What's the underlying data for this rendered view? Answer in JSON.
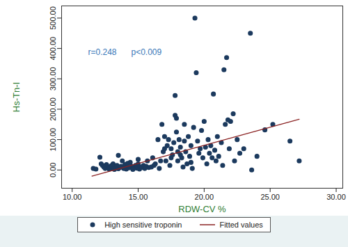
{
  "chart_data": {
    "type": "scatter",
    "x_label": "RDW-CV %",
    "y_label": "Hs-Tn-I",
    "annotations": [
      {
        "text": "r=0.248"
      },
      {
        "text": "p<0.009"
      }
    ],
    "xlim": [
      9.2,
      30.5
    ],
    "ylim": [
      -60,
      540
    ],
    "xticks": [
      {
        "value": 10,
        "label": "10.00"
      },
      {
        "value": 15,
        "label": "15.00"
      },
      {
        "value": 20,
        "label": "20.00"
      },
      {
        "value": 25,
        "label": "25.00"
      },
      {
        "value": 30,
        "label": "30.00"
      }
    ],
    "yticks": [
      {
        "value": 0,
        "label": "0.00"
      },
      {
        "value": 100,
        "label": "100.00"
      },
      {
        "value": 200,
        "label": "200.00"
      },
      {
        "value": 300,
        "label": "300.00"
      },
      {
        "value": 400,
        "label": "400.00"
      },
      {
        "value": 500,
        "label": "500.00"
      }
    ],
    "grid": false,
    "legend": "bottom",
    "series": [
      {
        "name": "High sensitive troponin",
        "type": "scatter",
        "marker": "circle",
        "color": "#1c3a5e",
        "x": [
          11.6,
          11.8,
          12.1,
          12.3,
          12.4,
          12.5,
          12.6,
          12.7,
          12.8,
          12.9,
          13.0,
          13.1,
          13.2,
          13.3,
          13.4,
          13.5,
          13.6,
          13.7,
          13.8,
          13.9,
          14.0,
          14.1,
          14.2,
          14.3,
          14.4,
          14.5,
          14.6,
          14.7,
          14.8,
          14.9,
          15.0,
          15.1,
          15.2,
          15.3,
          15.4,
          15.5,
          15.6,
          15.7,
          15.8,
          13.5,
          12.2,
          14.2,
          13.0,
          14.6,
          15.0,
          16.0,
          16.1,
          16.3,
          16.5,
          16.6,
          16.8,
          16.9,
          17.0,
          17.1,
          17.2,
          17.3,
          17.4,
          17.5,
          17.6,
          17.7,
          17.8,
          17.8,
          17.9,
          17.9,
          18.0,
          18.0,
          18.1,
          18.2,
          18.3,
          18.4,
          18.5,
          18.5,
          18.6,
          18.7,
          18.8,
          18.9,
          19.0,
          19.1,
          19.2,
          19.3,
          19.4,
          19.5,
          19.6,
          19.7,
          19.8,
          19.9,
          20.0,
          20.1,
          20.2,
          20.3,
          20.4,
          20.5,
          20.7,
          20.8,
          20.9,
          21.0,
          21.1,
          21.3,
          21.4,
          21.5,
          21.6,
          21.7,
          21.8,
          21.9,
          22.0,
          22.2,
          22.3,
          22.5,
          22.7,
          23.0,
          23.5,
          23.6,
          24.0,
          24.6,
          25.2,
          26.5,
          27.2,
          17.0,
          17.5,
          18.2,
          19.0,
          20.6,
          16.2,
          16.7
        ],
        "values": [
          5,
          3,
          42,
          15,
          10,
          5,
          18,
          8,
          3,
          12,
          6,
          20,
          2,
          10,
          15,
          4,
          8,
          12,
          30,
          5,
          18,
          3,
          10,
          7,
          25,
          12,
          4,
          9,
          15,
          6,
          20,
          3,
          10,
          8,
          15,
          5,
          12,
          30,
          8,
          48,
          20,
          22,
          15,
          2,
          35,
          10,
          40,
          20,
          100,
          5,
          150,
          60,
          110,
          30,
          80,
          100,
          15,
          70,
          50,
          90,
          245,
          180,
          170,
          125,
          60,
          30,
          100,
          75,
          40,
          10,
          150,
          95,
          60,
          20,
          110,
          45,
          80,
          5,
          140,
          500,
          320,
          95,
          55,
          70,
          130,
          40,
          160,
          75,
          20,
          100,
          55,
          80,
          250,
          65,
          30,
          110,
          45,
          90,
          15,
          330,
          150,
          370,
          165,
          70,
          160,
          185,
          30,
          100,
          55,
          70,
          450,
          0,
          45,
          132,
          150,
          95,
          30,
          70,
          40,
          50,
          25,
          40,
          15,
          30
        ]
      },
      {
        "name": "Fitted values",
        "type": "line",
        "line_style": "solid",
        "color": "#8b2323",
        "x": [
          11.5,
          27.2
        ],
        "values": [
          -20,
          167
        ]
      }
    ]
  }
}
